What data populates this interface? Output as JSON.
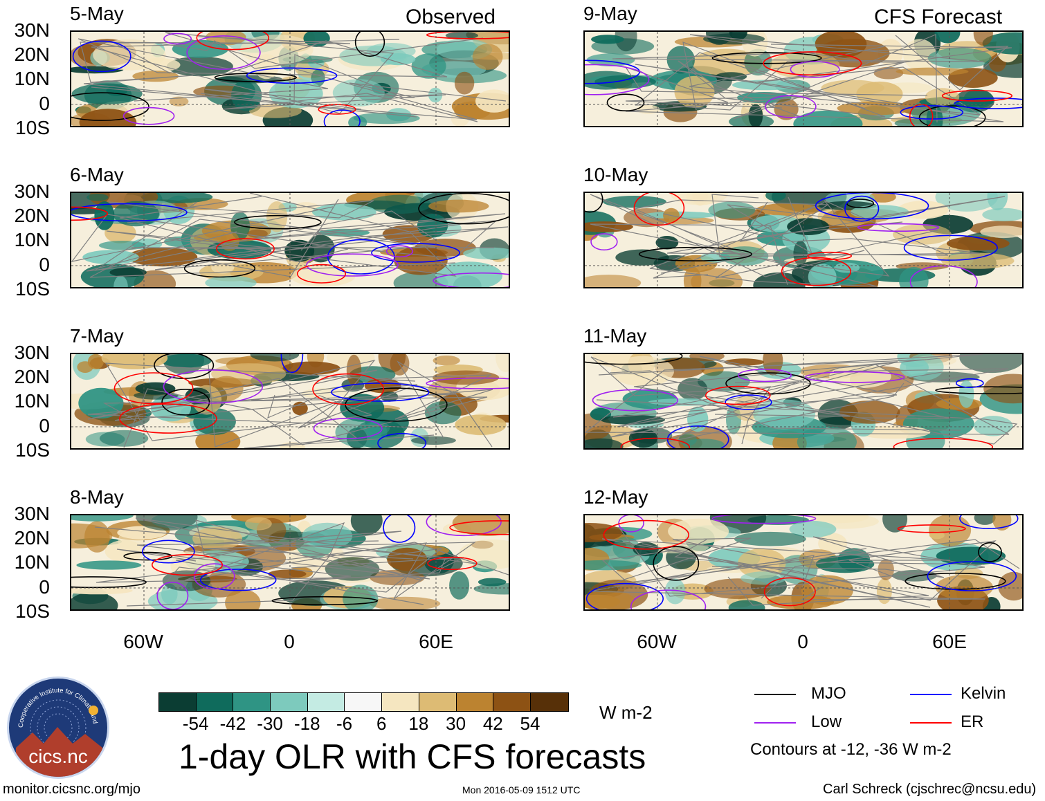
{
  "headers": {
    "observed": "Observed",
    "forecast": "CFS Forecast"
  },
  "panels": [
    {
      "date": "5-May",
      "column": "observed"
    },
    {
      "date": "6-May",
      "column": "observed"
    },
    {
      "date": "7-May",
      "column": "observed"
    },
    {
      "date": "8-May",
      "column": "observed"
    },
    {
      "date": "9-May",
      "column": "forecast"
    },
    {
      "date": "10-May",
      "column": "forecast"
    },
    {
      "date": "11-May",
      "column": "forecast"
    },
    {
      "date": "12-May",
      "column": "forecast"
    }
  ],
  "axes": {
    "lat_labels": [
      "30N",
      "20N",
      "10N",
      "0",
      "10S"
    ],
    "lon_labels": [
      "60W",
      "0",
      "60E"
    ],
    "lat_range": [
      -10,
      30
    ],
    "lon_range": [
      -90,
      90
    ]
  },
  "colorbar": {
    "colors": [
      "#0b3d33",
      "#0f6b5c",
      "#2f9484",
      "#7dcabd",
      "#c4ebe3",
      "#f7f7f7",
      "#f5e6c0",
      "#ddbb74",
      "#bc8330",
      "#8d5214",
      "#573008"
    ],
    "labels": [
      "-54",
      "-42",
      "-30",
      "-18",
      "-6",
      "6",
      "18",
      "30",
      "42",
      "54"
    ],
    "units": "W m-2"
  },
  "legend": {
    "items": [
      {
        "label": "MJO",
        "color": "#000000"
      },
      {
        "label": "Kelvin",
        "color": "#0000ff"
      },
      {
        "label": "Low",
        "color": "#a020f0"
      },
      {
        "label": "ER",
        "color": "#ff0000"
      }
    ],
    "note": "Contours at -12, -36 W m-2"
  },
  "title": "1-day OLR with CFS forecasts",
  "footer": {
    "left": "monitor.cicsnc.org/mjo",
    "center": "Mon 2016-05-09 1512 UTC",
    "right": "Carl Schreck (cjschrec@ncsu.edu)"
  },
  "logo": {
    "text": "cics.nc",
    "ring": "Cooperative Institute for Climate and Satellites"
  }
}
